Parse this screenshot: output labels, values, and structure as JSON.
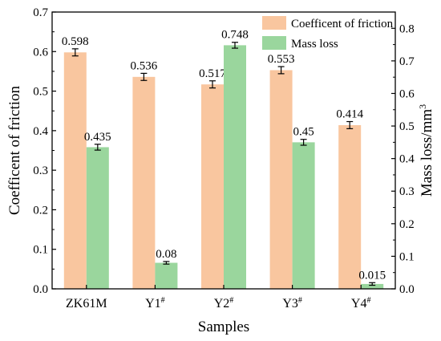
{
  "chart_data": {
    "type": "bar",
    "title": "",
    "xlabel": "Samples",
    "ylabel_left": "Coefficent of friction",
    "ylabel_right": "Mass loss/mm",
    "ylabel_right_sup": "3",
    "categories": [
      {
        "base": "ZK61M",
        "sup": ""
      },
      {
        "base": "Y1",
        "sup": "#"
      },
      {
        "base": "Y2",
        "sup": "#"
      },
      {
        "base": "Y3",
        "sup": "#"
      },
      {
        "base": "Y4",
        "sup": "#"
      }
    ],
    "series": [
      {
        "name": "Coefficent of friction",
        "axis": "left",
        "color": "#f9c69f",
        "values": [
          0.598,
          0.536,
          0.517,
          0.553,
          0.414
        ],
        "labels": [
          "0.598",
          "0.536",
          "0.517",
          "0.553",
          "0.414"
        ],
        "errors": [
          0.009,
          0.009,
          0.009,
          0.009,
          0.009
        ]
      },
      {
        "name": "Mass loss",
        "axis": "right",
        "color": "#9ad69d",
        "values": [
          0.435,
          0.08,
          0.748,
          0.45,
          0.015
        ],
        "labels": [
          "0.435",
          "0.08",
          "0.748",
          "0.45",
          "0.015"
        ],
        "errors": [
          0.009,
          0.004,
          0.009,
          0.009,
          0.004
        ]
      }
    ],
    "ylim_left": [
      0,
      0.7
    ],
    "ylim_right": [
      0,
      0.85
    ],
    "yticks_left": [
      "0.0",
      "0.1",
      "0.2",
      "0.3",
      "0.4",
      "0.5",
      "0.6",
      "0.7"
    ],
    "yticks_right": [
      "0.0",
      "0.1",
      "0.2",
      "0.3",
      "0.4",
      "0.5",
      "0.6",
      "0.7",
      "0.8"
    ],
    "legend_position": "top-right",
    "grid": false
  }
}
